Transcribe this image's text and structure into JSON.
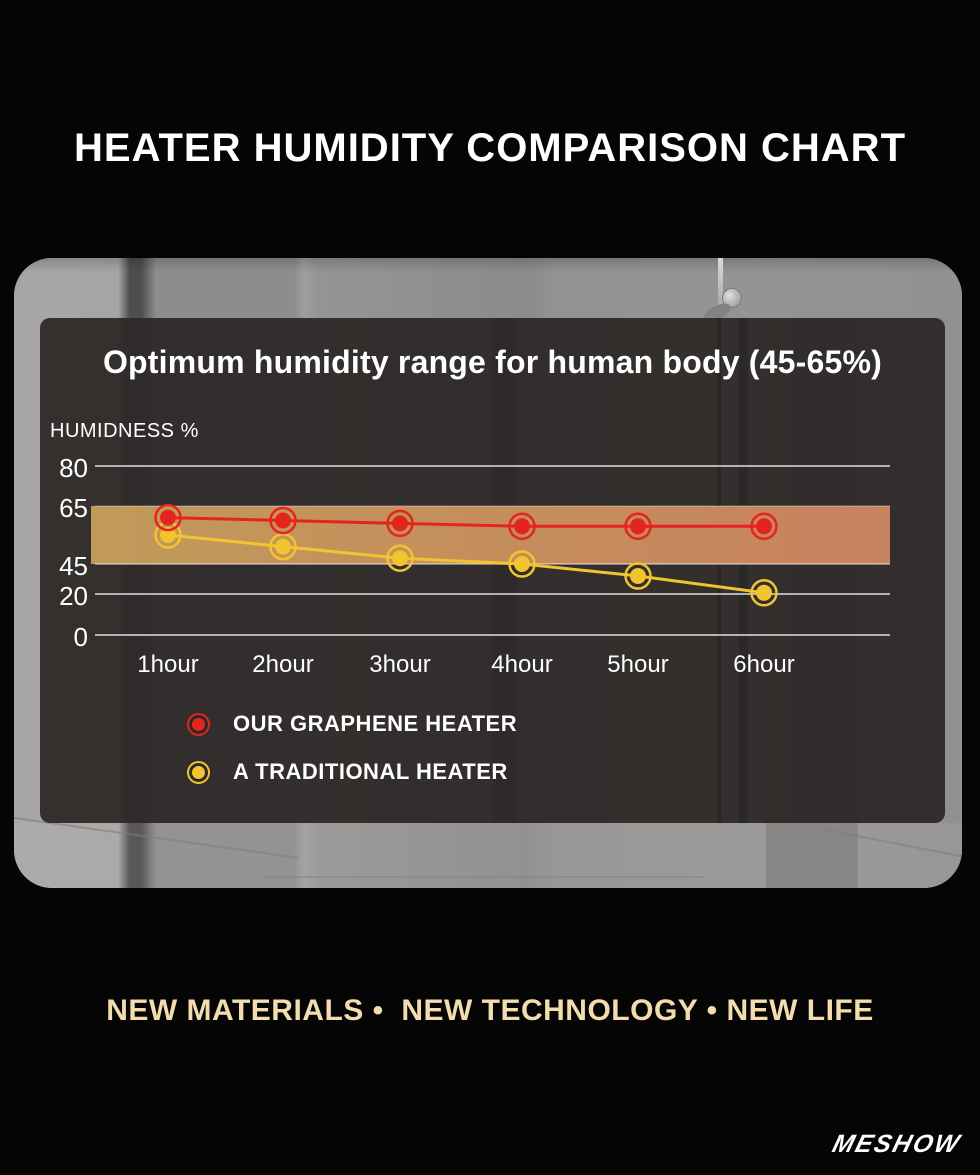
{
  "page": {
    "title": "HEATER HUMIDITY COMPARISON CHART",
    "tagline": "NEW MATERIALS •  NEW TECHNOLOGY • NEW LIFE",
    "brand": "MESHOW",
    "colors": {
      "background": "#050505",
      "tagline_text": "#f3ddae",
      "panel": "#2c2928"
    }
  },
  "chart_data": {
    "type": "line",
    "title": "Optimum humidity range for human body (45-65%)",
    "ylabel": "HUMIDNESS %",
    "categories": [
      "1hour",
      "2hour",
      "3hour",
      "4hour",
      "5hour",
      "6hour"
    ],
    "y_ticks": [
      80,
      65,
      45,
      20,
      0
    ],
    "ylim": [
      0,
      80
    ],
    "grid": true,
    "optimal_band": {
      "from": 45,
      "to": 65,
      "color_left": "#c19a5a",
      "color_right": "#c8825f"
    },
    "series": [
      {
        "name": "OUR GRAPHENE HEATER",
        "color": "#e6241e",
        "values": [
          61,
          60,
          59,
          58,
          58,
          58
        ]
      },
      {
        "name": "A TRADITIONAL HEATER",
        "color": "#f2c42e",
        "values": [
          55,
          51,
          47,
          45,
          35,
          21
        ]
      }
    ],
    "legend_position": "bottom-left"
  }
}
